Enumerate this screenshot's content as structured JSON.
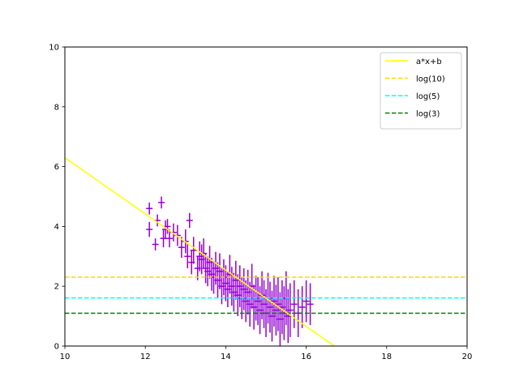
{
  "chart_data": {
    "type": "scatter",
    "xlim": [
      10,
      20
    ],
    "ylim": [
      0,
      10
    ],
    "x_ticks": [
      "10",
      "12",
      "14",
      "16",
      "18",
      "20"
    ],
    "y_ticks": [
      "0",
      "2",
      "4",
      "6",
      "8",
      "10"
    ],
    "grid": false,
    "legend_position": "top-right",
    "fit_line": {
      "name": "a*x+b",
      "color": "#ffff00",
      "points": [
        [
          10,
          6.3
        ],
        [
          16.7,
          0
        ]
      ]
    },
    "hlines": [
      {
        "name": "log(10)",
        "value": 2.302585,
        "color": "#ffd700",
        "style": "dashed"
      },
      {
        "name": "log(5)",
        "value": 1.609438,
        "color": "#00ffff",
        "style": "dashed"
      },
      {
        "name": "log(3)",
        "value": 1.098612,
        "color": "#008000",
        "style": "dashed"
      }
    ],
    "series": [
      {
        "color": "#9400d3",
        "x": [
          12.1,
          12.1,
          12.25,
          12.3,
          12.4,
          12.45,
          12.5,
          12.55,
          12.6,
          12.7,
          12.8,
          12.9,
          13.0,
          13.05,
          13.1,
          13.15,
          13.2,
          13.3,
          13.35,
          13.4,
          13.45,
          13.5,
          13.55,
          13.6,
          13.65,
          13.7,
          13.75,
          13.8,
          13.85,
          13.9,
          13.95,
          14.0,
          14.05,
          14.1,
          14.15,
          14.2,
          14.25,
          14.3,
          14.35,
          14.4,
          14.45,
          14.5,
          14.55,
          14.6,
          14.65,
          14.7,
          14.75,
          14.8,
          14.85,
          14.9,
          14.95,
          15.0,
          15.05,
          15.1,
          15.15,
          15.2,
          15.25,
          15.3,
          15.35,
          15.4,
          15.45,
          15.5,
          15.55,
          15.6,
          15.7,
          15.8,
          15.9,
          16.0,
          16.1
        ],
        "y": [
          4.6,
          3.9,
          3.4,
          4.2,
          4.8,
          3.6,
          3.9,
          4.0,
          3.6,
          3.8,
          3.7,
          3.3,
          3.5,
          3.0,
          4.2,
          2.8,
          3.2,
          2.6,
          3.0,
          2.9,
          3.1,
          2.6,
          2.5,
          2.8,
          2.4,
          2.3,
          2.6,
          2.2,
          2.5,
          2.0,
          2.3,
          2.1,
          1.9,
          2.4,
          2.0,
          1.8,
          2.2,
          1.7,
          2.0,
          1.6,
          1.9,
          1.5,
          1.8,
          1.4,
          2.0,
          1.3,
          1.6,
          1.5,
          1.2,
          1.7,
          1.4,
          1.1,
          1.6,
          1.3,
          1.0,
          1.5,
          1.2,
          1.4,
          0.9,
          1.3,
          1.1,
          1.6,
          1.0,
          1.2,
          1.4,
          1.1,
          1.3,
          1.5,
          1.4
        ],
        "yerr": [
          0.2,
          0.25,
          0.2,
          0.2,
          0.2,
          0.3,
          0.3,
          0.25,
          0.3,
          0.3,
          0.35,
          0.35,
          0.4,
          0.4,
          0.25,
          0.4,
          0.45,
          0.4,
          0.5,
          0.5,
          0.5,
          0.5,
          0.5,
          0.55,
          0.55,
          0.55,
          0.55,
          0.6,
          0.6,
          0.6,
          0.6,
          0.6,
          0.6,
          0.65,
          0.65,
          0.65,
          0.65,
          0.7,
          0.7,
          0.7,
          0.7,
          0.7,
          0.75,
          0.75,
          0.75,
          0.75,
          0.75,
          0.8,
          0.8,
          0.8,
          0.8,
          0.8,
          0.85,
          0.85,
          0.85,
          0.85,
          0.85,
          0.9,
          0.9,
          0.9,
          0.9,
          0.9,
          0.9,
          0.9,
          0.8,
          0.8,
          0.7,
          0.7,
          0.7
        ],
        "xerr": 0.08
      }
    ]
  }
}
